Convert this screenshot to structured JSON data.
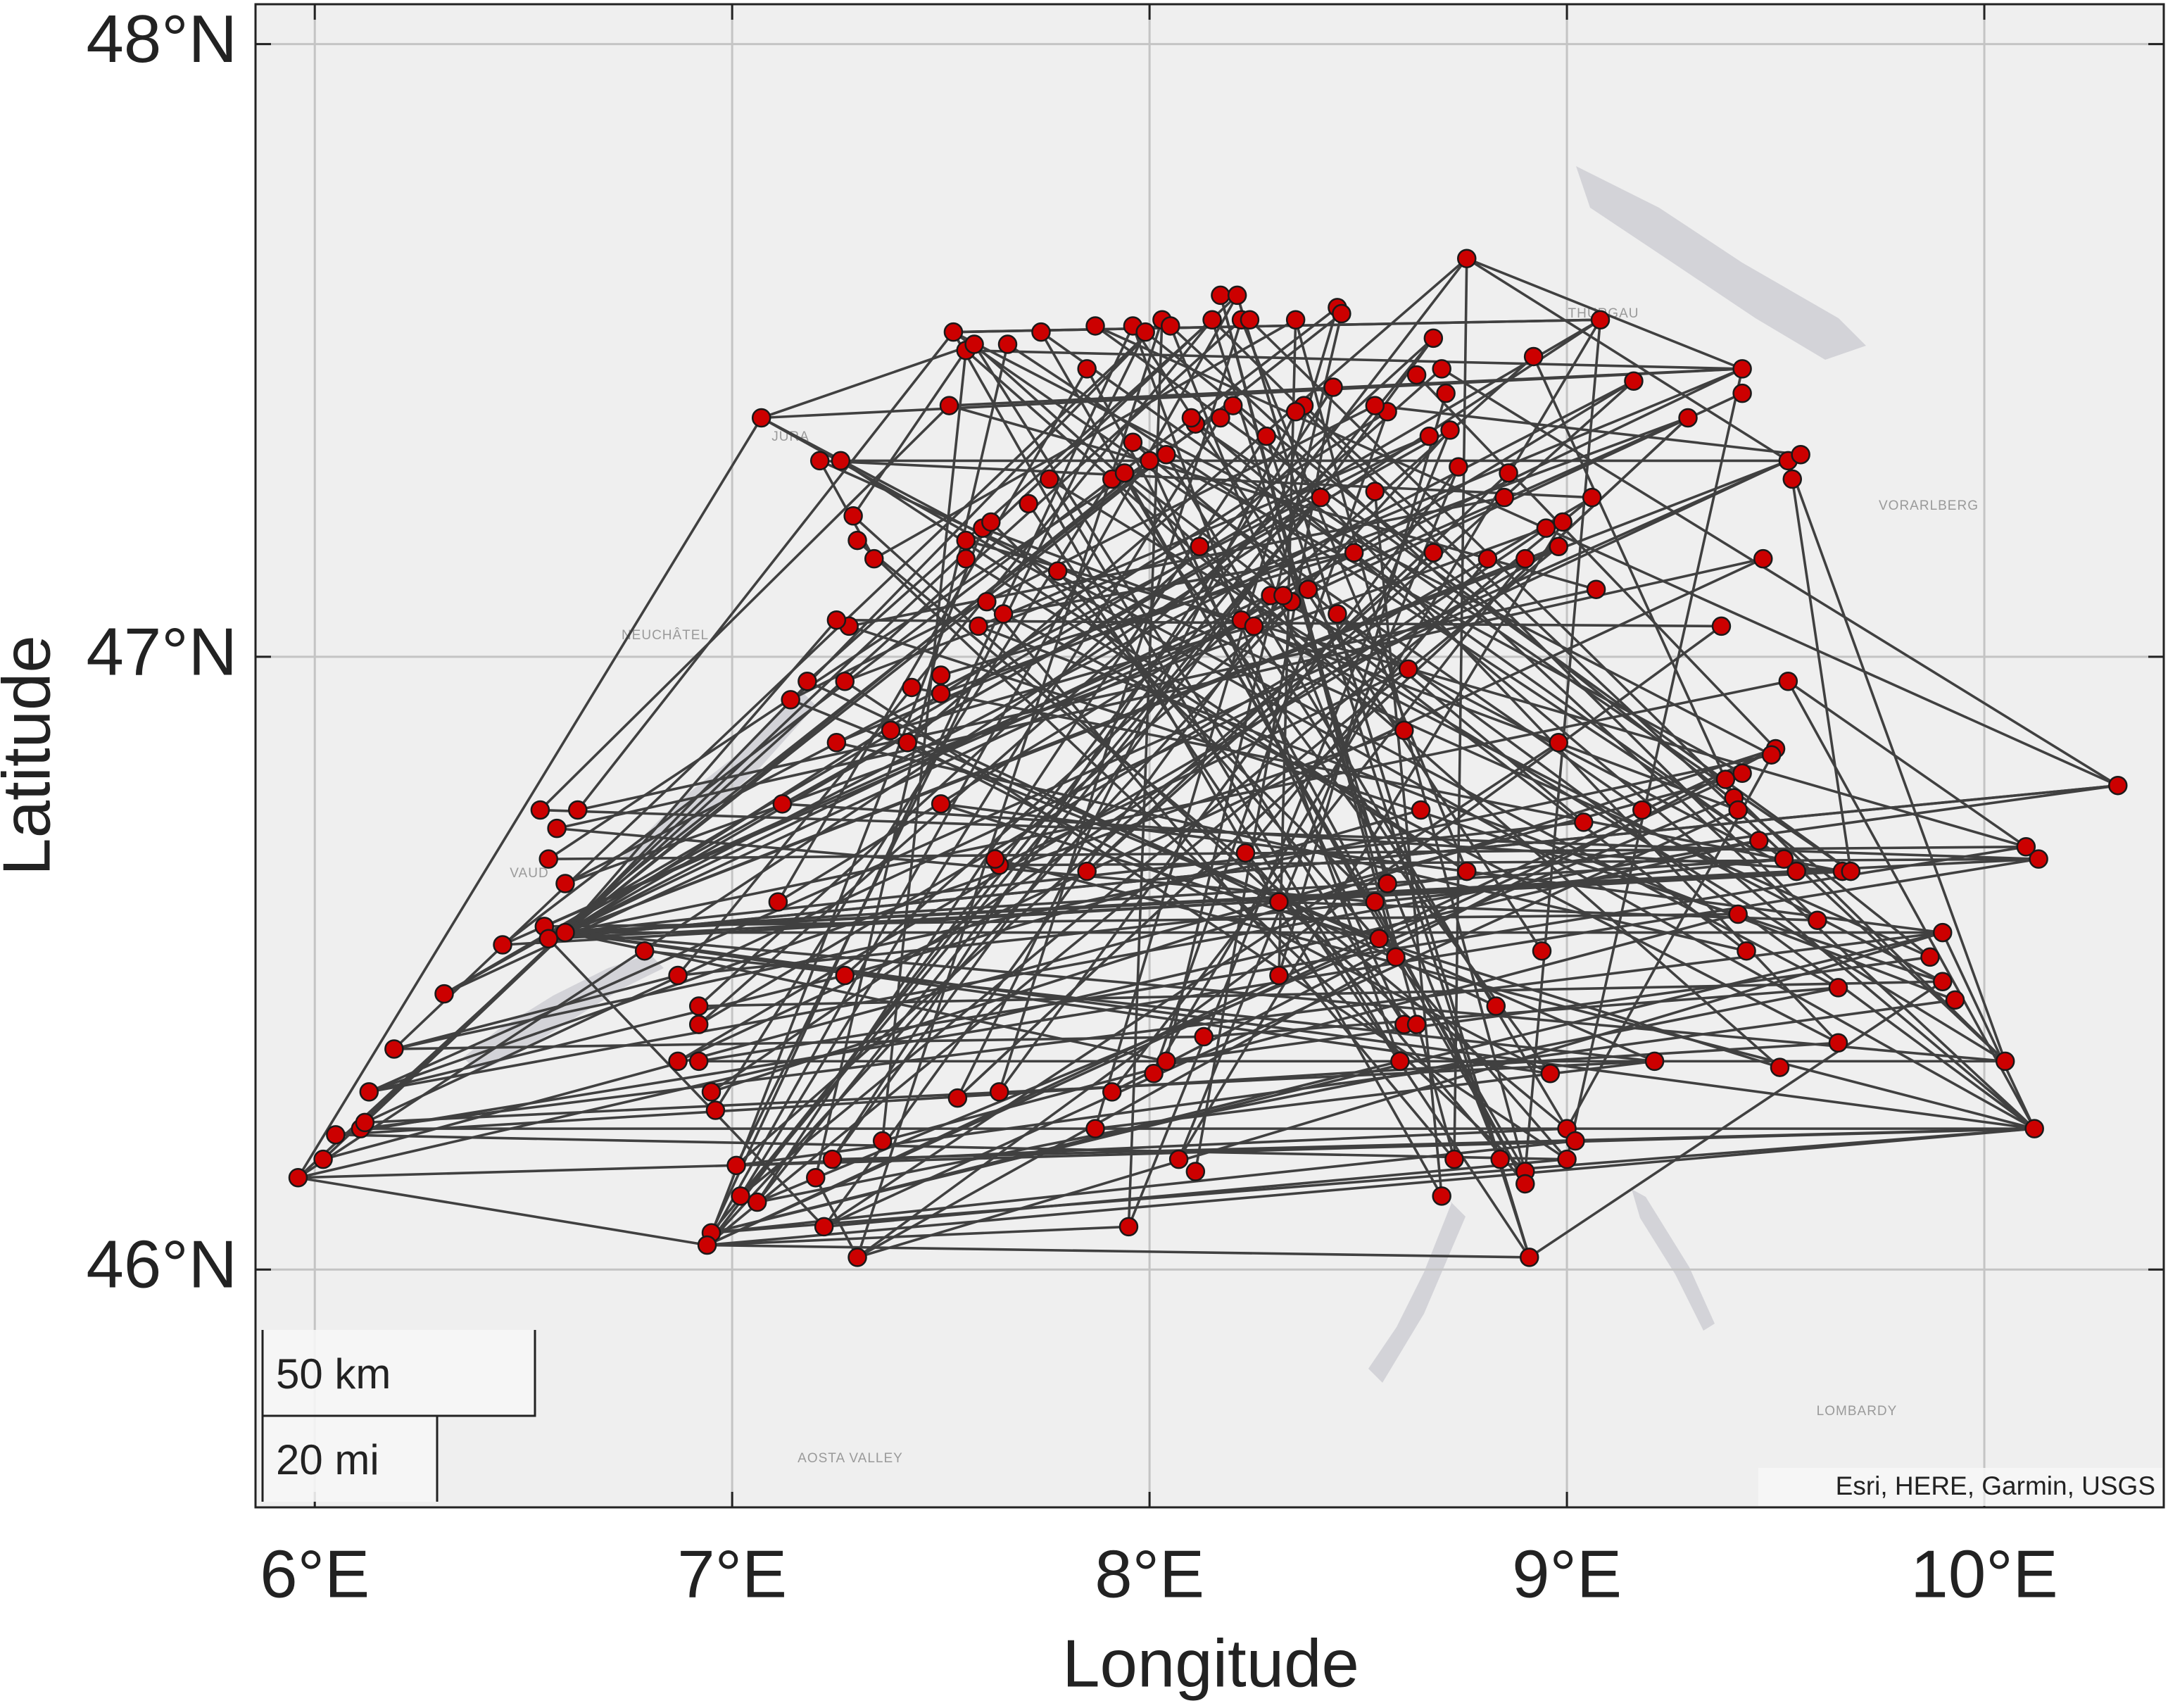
{
  "chart_data": {
    "type": "network",
    "xlabel": "Longitude",
    "ylabel": "Latitude",
    "xlim": [
      5.858,
      10.43
    ],
    "ylim": [
      45.612,
      48.065
    ],
    "xticks": [
      {
        "value": 6,
        "label": "6°E"
      },
      {
        "value": 7,
        "label": "7°E"
      },
      {
        "value": 8,
        "label": "8°E"
      },
      {
        "value": 9,
        "label": "9°E"
      },
      {
        "value": 10,
        "label": "10°E"
      }
    ],
    "yticks": [
      {
        "value": 46,
        "label": "46°N"
      },
      {
        "value": 47,
        "label": "47°N"
      },
      {
        "value": 48,
        "label": "48°N"
      }
    ],
    "grid": true,
    "nodes": {
      "color": "#cc0000",
      "x": [
        5.96,
        6.02,
        6.05,
        6.11,
        6.12,
        6.13,
        6.19,
        6.31,
        6.45,
        6.54,
        6.58,
        6.63,
        6.56,
        6.6,
        6.55,
        6.6,
        6.56,
        6.79,
        6.87,
        6.92,
        6.92,
        6.87,
        6.92,
        6.95,
        6.96,
        7.01,
        7.02,
        7.06,
        6.95,
        6.94,
        7.22,
        7.3,
        7.2,
        7.24,
        7.36,
        7.27,
        7.11,
        7.12,
        7.14,
        7.18,
        7.25,
        7.27,
        7.28,
        7.25,
        7.34,
        7.3,
        7.29,
        7.26,
        7.21,
        7.07,
        7.38,
        7.42,
        7.43,
        7.5,
        7.5,
        7.5,
        7.54,
        7.64,
        7.64,
        7.63,
        7.85,
        7.87,
        7.91,
        7.95,
        8.01,
        8.04,
        8.07,
        8.11,
        8.13,
        8.23,
        8.31,
        8.31,
        7.59,
        7.61,
        7.65,
        7.56,
        7.56,
        7.6,
        7.62,
        7.71,
        7.76,
        7.78,
        7.91,
        7.94,
        7.96,
        8.0,
        8.04,
        8.12,
        7.52,
        7.53,
        7.56,
        7.58,
        7.66,
        7.74,
        7.85,
        7.87,
        7.96,
        7.99,
        8.03,
        8.05,
        8.15,
        8.17,
        8.21,
        8.22,
        8.24,
        8.35,
        8.45,
        8.46,
        8.76,
        8.68,
        9.08,
        8.92,
        9.16,
        9.42,
        9.42,
        9.29,
        9.53,
        9.56,
        9.54,
        9.47,
        9.37,
        9.53,
        9.5,
        9.49,
        9.42,
        9.38,
        9.4,
        9.41,
        9.46,
        9.52,
        9.55,
        9.66,
        9.68,
        9.6,
        9.41,
        9.43,
        9.65,
        9.65,
        9.51,
        9.21,
        9.9,
        9.87,
        9.9,
        9.93,
        10.05,
        10.12,
        10.1,
        10.13,
        10.32,
        9.0,
        9.02,
        9.0,
        8.9,
        8.91,
        8.9,
        8.84,
        8.73,
        8.7,
        8.96,
        8.94,
        8.83,
        8.76,
        8.6,
        8.61,
        8.64,
        8.59,
        8.55,
        8.54,
        8.57,
        8.65,
        8.61,
        8.62,
        8.98,
        9.04,
        9.18,
        8.98,
        8.9,
        8.95,
        8.99,
        9.06,
        9.07,
        8.85,
        8.86,
        8.81,
        8.74,
        8.72,
        8.67,
        8.71,
        8.7,
        8.64,
        8.57,
        8.54,
        8.44,
        8.37,
        8.35,
        8.28,
        8.2,
        8.17,
        8.11,
        8.1,
        8.41,
        8.54,
        8.49,
        8.45,
        8.34,
        8.29,
        8.32,
        8.38,
        8.22,
        8.25,
        8.68
      ],
      "y": [
        46.15,
        46.18,
        46.22,
        46.23,
        46.24,
        46.29,
        46.36,
        46.45,
        46.53,
        46.75,
        46.72,
        46.75,
        46.67,
        46.63,
        46.56,
        46.55,
        46.54,
        46.52,
        46.48,
        46.43,
        46.4,
        46.34,
        46.34,
        46.29,
        46.26,
        46.17,
        46.12,
        46.11,
        46.06,
        46.04,
        46.07,
        46.02,
        46.15,
        46.18,
        46.21,
        46.48,
        46.6,
        46.76,
        46.93,
        46.96,
        46.86,
        46.96,
        47.05,
        47.06,
        47.16,
        47.19,
        47.23,
        47.32,
        47.32,
        47.39,
        46.88,
        46.86,
        46.95,
        46.97,
        46.94,
        46.76,
        46.28,
        46.29,
        46.66,
        46.67,
        46.65,
        46.23,
        46.29,
        46.07,
        46.32,
        46.34,
        46.18,
        46.16,
        46.38,
        46.68,
        46.6,
        46.48,
        47.05,
        47.09,
        47.07,
        47.16,
        47.19,
        47.21,
        47.22,
        47.25,
        47.29,
        47.14,
        47.29,
        47.3,
        47.35,
        47.32,
        47.33,
        47.18,
        47.41,
        47.53,
        47.5,
        47.51,
        47.51,
        47.53,
        47.47,
        47.54,
        47.54,
        47.53,
        47.55,
        47.54,
        47.55,
        47.59,
        47.59,
        47.55,
        47.55,
        47.55,
        47.57,
        47.56,
        47.65,
        47.52,
        47.55,
        47.49,
        47.45,
        47.47,
        47.43,
        47.39,
        47.32,
        47.33,
        47.29,
        47.16,
        47.05,
        46.96,
        46.85,
        46.84,
        46.81,
        46.8,
        46.77,
        46.75,
        46.7,
        46.67,
        46.65,
        46.65,
        46.65,
        46.57,
        46.58,
        46.52,
        46.46,
        46.37,
        46.33,
        46.34,
        46.55,
        46.51,
        46.47,
        46.44,
        46.34,
        46.23,
        46.69,
        46.67,
        46.79,
        46.23,
        46.21,
        46.18,
        46.16,
        46.02,
        46.14,
        46.18,
        46.18,
        46.12,
        46.32,
        46.52,
        46.43,
        46.65,
        46.34,
        46.4,
        46.4,
        46.51,
        46.54,
        46.6,
        46.63,
        46.75,
        46.88,
        46.98,
        46.86,
        46.73,
        46.75,
        47.18,
        47.16,
        47.21,
        47.22,
        47.26,
        47.11,
        47.26,
        47.3,
        47.16,
        47.31,
        47.37,
        47.36,
        47.43,
        47.47,
        47.46,
        47.4,
        47.41,
        47.44,
        47.41,
        47.4,
        47.36,
        47.41,
        47.39,
        47.38,
        47.39,
        47.26,
        47.27,
        47.17,
        47.07,
        47.09,
        47.1,
        47.1,
        47.11,
        47.06,
        47.05,
        47.17
      ]
    },
    "edge_color": "#404040",
    "edges": [
      [
        0,
        145
      ],
      [
        0,
        15
      ],
      [
        0,
        49
      ],
      [
        1,
        102
      ],
      [
        2,
        151
      ],
      [
        3,
        145
      ],
      [
        4,
        139
      ],
      [
        5,
        116
      ],
      [
        6,
        68
      ],
      [
        7,
        110
      ],
      [
        0,
        29
      ],
      [
        4,
        15
      ],
      [
        5,
        35
      ],
      [
        6,
        18
      ],
      [
        15,
        140
      ],
      [
        15,
        147
      ],
      [
        15,
        121
      ],
      [
        15,
        129
      ],
      [
        15,
        173
      ],
      [
        15,
        113
      ],
      [
        15,
        112
      ],
      [
        15,
        200
      ],
      [
        15,
        103
      ],
      [
        15,
        85
      ],
      [
        15,
        65
      ],
      [
        15,
        158
      ],
      [
        15,
        175
      ],
      [
        15,
        86
      ],
      [
        15,
        190
      ],
      [
        15,
        43
      ],
      [
        15,
        98
      ],
      [
        15,
        144
      ],
      [
        16,
        148
      ],
      [
        16,
        132
      ],
      [
        16,
        107
      ],
      [
        16,
        30
      ],
      [
        9,
        88
      ],
      [
        11,
        180
      ],
      [
        12,
        196
      ],
      [
        13,
        186
      ],
      [
        14,
        134
      ],
      [
        8,
        115
      ],
      [
        10,
        119
      ],
      [
        17,
        139
      ],
      [
        29,
        102
      ],
      [
        29,
        108
      ],
      [
        29,
        153
      ],
      [
        29,
        122
      ],
      [
        29,
        77
      ],
      [
        29,
        185
      ],
      [
        29,
        63
      ],
      [
        28,
        145
      ],
      [
        28,
        162
      ],
      [
        28,
        200
      ],
      [
        28,
        96
      ],
      [
        27,
        136
      ],
      [
        27,
        195
      ],
      [
        26,
        179
      ],
      [
        25,
        97
      ],
      [
        25,
        149
      ],
      [
        24,
        84
      ],
      [
        23,
        177
      ],
      [
        22,
        146
      ],
      [
        21,
        175
      ],
      [
        20,
        188
      ],
      [
        19,
        109
      ],
      [
        18,
        100
      ],
      [
        31,
        32
      ],
      [
        31,
        98
      ],
      [
        31,
        140
      ],
      [
        31,
        165
      ],
      [
        30,
        151
      ],
      [
        32,
        92
      ],
      [
        33,
        109
      ],
      [
        34,
        90
      ],
      [
        35,
        111
      ],
      [
        36,
        94
      ],
      [
        37,
        132
      ],
      [
        38,
        191
      ],
      [
        39,
        100
      ],
      [
        40,
        113
      ],
      [
        41,
        87
      ],
      [
        42,
        142
      ],
      [
        43,
        120
      ],
      [
        44,
        105
      ],
      [
        45,
        152
      ],
      [
        46,
        90
      ],
      [
        47,
        116
      ],
      [
        48,
        179
      ],
      [
        48,
        44
      ],
      [
        49,
        113
      ],
      [
        49,
        145
      ],
      [
        50,
        139
      ],
      [
        51,
        108
      ],
      [
        52,
        131
      ],
      [
        53,
        202
      ],
      [
        54,
        115
      ],
      [
        55,
        140
      ],
      [
        56,
        115
      ],
      [
        57,
        103
      ],
      [
        58,
        147
      ],
      [
        59,
        145
      ],
      [
        60,
        112
      ],
      [
        61,
        106
      ],
      [
        62,
        122
      ],
      [
        63,
        185
      ],
      [
        64,
        110
      ],
      [
        65,
        141
      ],
      [
        66,
        184
      ],
      [
        67,
        192
      ],
      [
        68,
        136
      ],
      [
        69,
        154
      ],
      [
        70,
        148
      ],
      [
        71,
        105
      ],
      [
        72,
        143
      ],
      [
        73,
        156
      ],
      [
        74,
        137
      ],
      [
        75,
        161
      ],
      [
        76,
        146
      ],
      [
        77,
        127
      ],
      [
        78,
        167
      ],
      [
        79,
        153
      ],
      [
        80,
        144
      ],
      [
        81,
        151
      ],
      [
        82,
        158
      ],
      [
        83,
        135
      ],
      [
        84,
        124
      ],
      [
        85,
        163
      ],
      [
        86,
        149
      ],
      [
        87,
        160
      ],
      [
        88,
        113
      ],
      [
        89,
        110
      ],
      [
        89,
        123
      ],
      [
        90,
        138
      ],
      [
        91,
        170
      ],
      [
        92,
        128
      ],
      [
        93,
        129
      ],
      [
        94,
        154
      ],
      [
        95,
        148
      ],
      [
        96,
        162
      ],
      [
        97,
        141
      ],
      [
        98,
        63
      ],
      [
        99,
        145
      ],
      [
        100,
        133
      ],
      [
        101,
        156
      ],
      [
        102,
        153
      ],
      [
        103,
        161
      ],
      [
        104,
        144
      ],
      [
        105,
        152
      ],
      [
        106,
        8
      ],
      [
        107,
        65
      ],
      [
        108,
        116
      ],
      [
        109,
        26
      ],
      [
        110,
        152
      ],
      [
        111,
        126
      ],
      [
        112,
        36
      ],
      [
        113,
        90
      ],
      [
        114,
        7
      ],
      [
        115,
        56
      ],
      [
        116,
        144
      ],
      [
        117,
        4
      ],
      [
        118,
        132
      ],
      [
        119,
        21
      ],
      [
        120,
        31
      ],
      [
        121,
        145
      ],
      [
        122,
        23
      ],
      [
        123,
        6
      ],
      [
        124,
        29
      ],
      [
        125,
        1
      ],
      [
        126,
        27
      ],
      [
        127,
        30
      ],
      [
        128,
        0
      ],
      [
        129,
        18
      ],
      [
        130,
        8
      ],
      [
        131,
        15
      ],
      [
        132,
        95
      ],
      [
        133,
        70
      ],
      [
        134,
        34
      ],
      [
        135,
        40
      ],
      [
        136,
        49
      ],
      [
        137,
        2
      ],
      [
        138,
        55
      ],
      [
        139,
        61
      ],
      [
        140,
        3
      ],
      [
        141,
        48
      ],
      [
        142,
        19
      ],
      [
        143,
        25
      ],
      [
        144,
        22
      ],
      [
        145,
        33
      ],
      [
        146,
        12
      ],
      [
        147,
        9
      ],
      [
        148,
        16
      ],
      [
        149,
        45
      ],
      [
        150,
        28
      ],
      [
        151,
        41
      ],
      [
        152,
        93
      ],
      [
        153,
        102
      ],
      [
        154,
        83
      ],
      [
        155,
        99
      ],
      [
        156,
        108
      ],
      [
        157,
        89
      ],
      [
        158,
        51
      ],
      [
        159,
        96
      ],
      [
        160,
        39
      ],
      [
        161,
        47
      ],
      [
        162,
        80
      ],
      [
        163,
        91
      ],
      [
        164,
        46
      ],
      [
        165,
        101
      ],
      [
        166,
        38
      ],
      [
        167,
        10
      ],
      [
        168,
        100
      ],
      [
        169,
        35
      ],
      [
        170,
        5
      ],
      [
        171,
        58
      ],
      [
        172,
        30
      ],
      [
        173,
        84
      ],
      [
        174,
        89
      ],
      [
        175,
        29
      ],
      [
        176,
        62
      ],
      [
        177,
        13
      ],
      [
        178,
        66
      ],
      [
        179,
        20
      ],
      [
        180,
        88
      ],
      [
        181,
        42
      ],
      [
        182,
        60
      ],
      [
        183,
        69
      ],
      [
        184,
        57
      ],
      [
        185,
        7
      ],
      [
        186,
        72
      ],
      [
        187,
        71
      ],
      [
        188,
        148
      ],
      [
        189,
        122
      ],
      [
        190,
        64
      ],
      [
        191,
        117
      ],
      [
        192,
        33
      ],
      [
        193,
        144
      ],
      [
        194,
        56
      ],
      [
        195,
        153
      ],
      [
        196,
        137
      ],
      [
        197,
        26
      ],
      [
        198,
        132
      ],
      [
        199,
        145
      ],
      [
        200,
        27
      ],
      [
        201,
        157
      ],
      [
        202,
        74
      ],
      [
        203,
        145
      ],
      [
        204,
        14
      ],
      [
        205,
        130
      ],
      [
        206,
        30
      ],
      [
        207,
        59
      ],
      [
        208,
        142
      ],
      [
        209,
        50
      ],
      [
        210,
        25
      ],
      [
        0,
        110
      ],
      [
        2,
        147
      ],
      [
        15,
        145
      ],
      [
        15,
        116
      ],
      [
        29,
        145
      ],
      [
        28,
        140
      ],
      [
        5,
        128
      ],
      [
        6,
        98
      ],
      [
        11,
        89
      ],
      [
        49,
        91
      ],
      [
        113,
        108
      ],
      [
        110,
        89
      ],
      [
        145,
        140
      ],
      [
        146,
        121
      ],
      [
        151,
        113
      ],
      [
        149,
        122
      ],
      [
        153,
        142
      ]
    ],
    "scalebar": [
      "50 km",
      "20 mi"
    ],
    "attribution": "Esri, HERE, Garmin, USGS",
    "basemap_labels": [
      "JURA",
      "NEUCHÂTEL",
      "VAUD",
      "THURGAU",
      "VORARLBERG",
      "AOSTA VALLEY",
      "LOMBARDY"
    ]
  }
}
